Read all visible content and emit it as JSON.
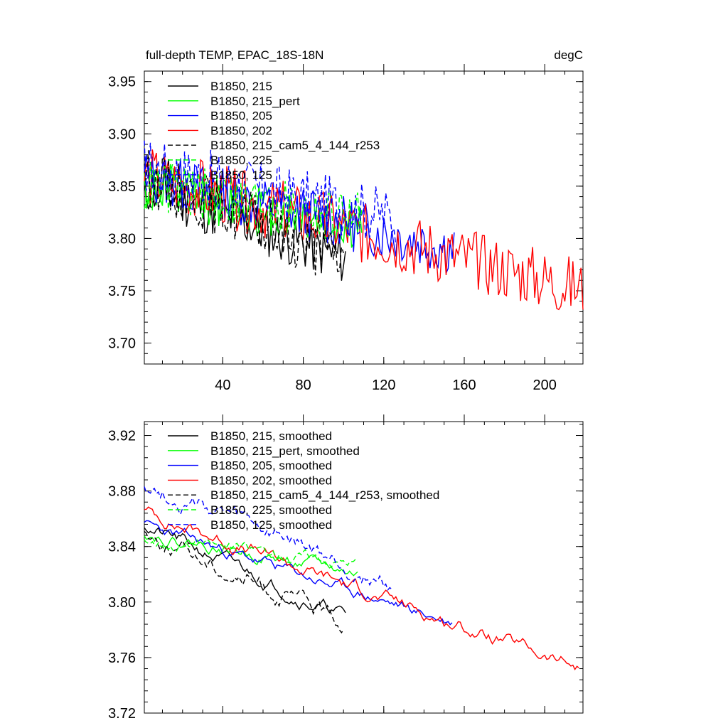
{
  "chart_data": [
    {
      "type": "line",
      "title": "full-depth TEMP, EPAC_18S-18N",
      "units": "degC",
      "xlim": [
        1,
        219
      ],
      "ylim": [
        3.68,
        3.96
      ],
      "xticks": [
        40,
        80,
        120,
        160,
        200
      ],
      "yticks": [
        "3.70",
        "3.75",
        "3.80",
        "3.85",
        "3.90",
        "3.95"
      ],
      "series": [
        {
          "name": "B1850, 215",
          "color": "#000000",
          "dash": "solid",
          "length": 101,
          "start": 3.85,
          "end": 3.78,
          "noise": 0.026,
          "seed": 11
        },
        {
          "name": "B1850, 215_pert",
          "color": "#00ff00",
          "dash": "solid",
          "length": 109,
          "start": 3.85,
          "end": 3.81,
          "noise": 0.026,
          "seed": 12
        },
        {
          "name": "B1850, 205",
          "color": "#0000ff",
          "dash": "solid",
          "length": 155,
          "start": 3.86,
          "end": 3.79,
          "noise": 0.026,
          "seed": 13
        },
        {
          "name": "B1850, 202",
          "color": "#ff0000",
          "dash": "solid",
          "length": 219,
          "start": 3.86,
          "end": 3.75,
          "noise": 0.03,
          "seed": 14
        },
        {
          "name": "B1850, 215_cam5_4_144_r253",
          "color": "#000000",
          "dash": "dashed",
          "length": 100,
          "start": 3.86,
          "end": 3.78,
          "noise": 0.028,
          "seed": 15
        },
        {
          "name": "B1850, 225",
          "color": "#00ff00",
          "dash": "dashed",
          "length": 109,
          "start": 3.85,
          "end": 3.82,
          "noise": 0.026,
          "seed": 16
        },
        {
          "name": "B1850, 125",
          "color": "#0000ff",
          "dash": "dashed",
          "length": 126,
          "start": 3.87,
          "end": 3.82,
          "noise": 0.028,
          "seed": 17
        }
      ]
    },
    {
      "type": "line",
      "title": "",
      "xlim": [
        1,
        219
      ],
      "ylim": [
        3.72,
        3.93
      ],
      "yticks": [
        "3.72",
        "3.76",
        "3.80",
        "3.84",
        "3.88",
        "3.92"
      ],
      "series": [
        {
          "name": "B1850, 215, smoothed",
          "color": "#000000",
          "dash": "solid",
          "length": 101,
          "start": 3.855,
          "end": 3.79,
          "noise": 0.009,
          "seed": 21
        },
        {
          "name": "B1850, 215_pert, smoothed",
          "color": "#00ff00",
          "dash": "solid",
          "length": 107,
          "start": 3.85,
          "end": 3.82,
          "noise": 0.008,
          "seed": 22
        },
        {
          "name": "B1850, 205, smoothed",
          "color": "#0000ff",
          "dash": "solid",
          "length": 154,
          "start": 3.855,
          "end": 3.785,
          "noise": 0.008,
          "seed": 23
        },
        {
          "name": "B1850, 202, smoothed",
          "color": "#ff0000",
          "dash": "solid",
          "length": 217,
          "start": 3.865,
          "end": 3.752,
          "noise": 0.009,
          "seed": 24
        },
        {
          "name": "B1850, 215_cam5_4_144_r253, smoothed",
          "color": "#000000",
          "dash": "dashed",
          "length": 100,
          "start": 3.85,
          "end": 3.785,
          "noise": 0.012,
          "seed": 25
        },
        {
          "name": "B1850, 225, smoothed",
          "color": "#00ff00",
          "dash": "dashed",
          "length": 107,
          "start": 3.845,
          "end": 3.83,
          "noise": 0.008,
          "seed": 26
        },
        {
          "name": "B1850, 125, smoothed",
          "color": "#0000ff",
          "dash": "dashed",
          "length": 124,
          "start": 3.885,
          "end": 3.812,
          "noise": 0.012,
          "seed": 27
        }
      ]
    }
  ]
}
